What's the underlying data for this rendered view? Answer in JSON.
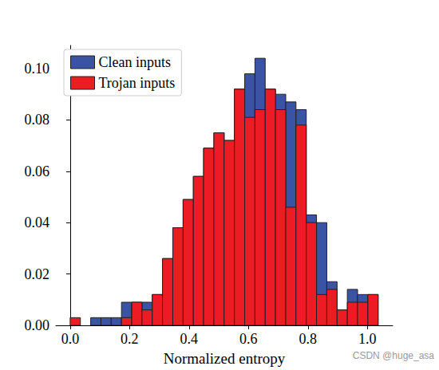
{
  "chart_data": {
    "type": "histogram",
    "x_label": "Normalized entropy",
    "annotations": [
      "CSDN @huge_asa"
    ],
    "bins": [
      0,
      0.0345,
      0.0691,
      0.1036,
      0.1381,
      0.1727,
      0.2072,
      0.2417,
      0.2763,
      0.3108,
      0.3453,
      0.3799,
      0.4144,
      0.4489,
      0.4835,
      0.518,
      0.5525,
      0.5871,
      0.6216,
      0.6561,
      0.6907,
      0.7252,
      0.7597,
      0.7943,
      0.8288,
      0.8633,
      0.8979,
      0.9324,
      0.9669,
      1.0015,
      1.036
    ],
    "series": [
      {
        "name": "Clean inputs",
        "color": "#3a53a4",
        "values": [
          0,
          0,
          0.003,
          0.003,
          0.003,
          0.009,
          0.009,
          0.009,
          0.012,
          0.026,
          0.038,
          0.049,
          0.058,
          0.069,
          0.075,
          0.072,
          0.092,
          0.098,
          0.104,
          0.092,
          0.09,
          0.087,
          0.084,
          0.043,
          0.04,
          0.017,
          0.006,
          0.014,
          0.012,
          0.012
        ]
      },
      {
        "name": "Trojan inputs",
        "color": "#ed1c24",
        "values": [
          0.003,
          0,
          0,
          0,
          0,
          0.003,
          0.009,
          0.006,
          0.012,
          0.026,
          0.038,
          0.049,
          0.058,
          0.069,
          0.075,
          0.072,
          0.092,
          0.081,
          0.084,
          0.092,
          0.084,
          0.046,
          0.078,
          0.04,
          0.012,
          0.014,
          0.006,
          0.009,
          0.009,
          0.012
        ]
      }
    ],
    "xlim": [
      -0.048,
      1.085
    ],
    "ylim": [
      0,
      0.109
    ],
    "xticks": [
      {
        "value": 0,
        "label": "0.0"
      },
      0.2,
      0.4,
      0.6,
      0.8,
      {
        "value": 1,
        "label": "1.0"
      }
    ],
    "yticks": [
      {
        "value": 0,
        "label": "0.00"
      },
      {
        "value": 0.02,
        "label": "0.02"
      },
      {
        "value": 0.04,
        "label": "0.04"
      },
      {
        "value": 0.06,
        "label": "0.06"
      },
      {
        "value": 0.08,
        "label": "0.08"
      },
      {
        "value": 0.1,
        "label": "0.10"
      }
    ],
    "grid": false,
    "legend": "upper left"
  }
}
